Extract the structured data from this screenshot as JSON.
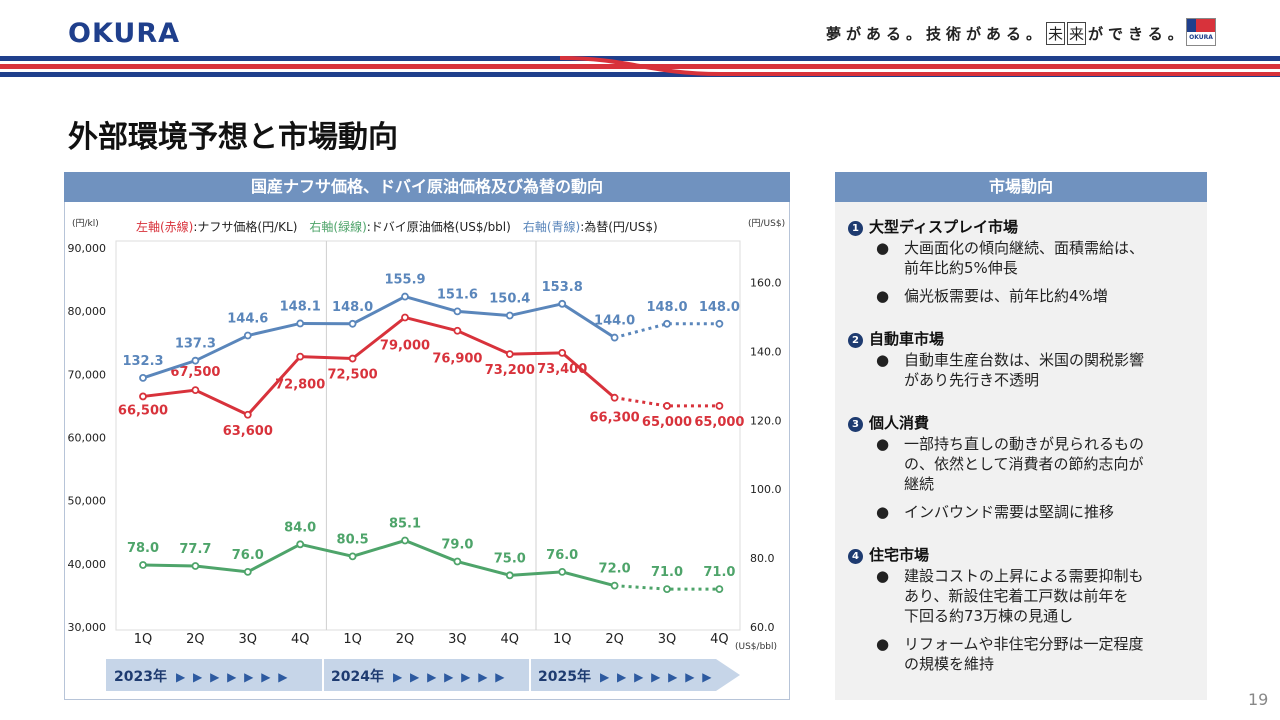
{
  "header": {
    "logo": "OKURA",
    "tagline_a": "夢がある。技術がある。",
    "tagline_box1": "未",
    "tagline_box2": "来",
    "tagline_b": "ができる。",
    "corner_logo": "OKURA"
  },
  "page_title": "外部環境予想と市場動向",
  "left_panel_title": "国産ナフサ価格、ドバイ原油価格及び為替の動向",
  "right_panel_title": "市場動向",
  "page_number": "19",
  "colors": {
    "red": "#d8323b",
    "green": "#4ea46a",
    "blue": "#5a86bb",
    "header_bar": "#7092bf",
    "navy": "#1f3f8c"
  },
  "chart_data": {
    "type": "line",
    "categories": [
      "1Q",
      "2Q",
      "3Q",
      "4Q",
      "1Q",
      "2Q",
      "3Q",
      "4Q",
      "1Q",
      "2Q",
      "3Q",
      "4Q"
    ],
    "years": [
      {
        "label": "2023年",
        "arrows": "▶ ▶ ▶ ▶ ▶ ▶ ▶"
      },
      {
        "label": "2024年",
        "arrows": "▶ ▶ ▶ ▶ ▶ ▶ ▶"
      },
      {
        "label": "2025年",
        "arrows": "▶ ▶ ▶ ▶ ▶ ▶ ▶"
      }
    ],
    "forecast_start_index": 9,
    "left_axis": {
      "unit": "(円/kl)",
      "min": 30000,
      "max": 90000,
      "ticks": [
        "30,000",
        "40,000",
        "50,000",
        "60,000",
        "70,000",
        "80,000",
        "90,000"
      ]
    },
    "right_axis": {
      "unit_top": "(円/US$)",
      "unit_bottom": "(US$/bbl)",
      "min": 60,
      "max": 170,
      "ticks": [
        "60.0",
        "80.0",
        "100.0",
        "120.0",
        "140.0",
        "160.0"
      ]
    },
    "legend": [
      {
        "axis": "左軸(赤線)",
        "text": ":ナフサ価格(円/KL)",
        "color": "#d8323b"
      },
      {
        "axis": "右軸(緑線)",
        "text": ":ドバイ原油価格(US$/bbl)",
        "color": "#4ea46a"
      },
      {
        "axis": "右軸(青線)",
        "text": ":為替(円/US$)",
        "color": "#5a86bb"
      }
    ],
    "series": [
      {
        "name": "ナフサ価格",
        "axis": "left",
        "color": "#d8323b",
        "values": [
          66500,
          67500,
          63600,
          72800,
          72500,
          79000,
          76900,
          73200,
          73400,
          66300,
          65000,
          65000
        ],
        "labels": [
          "66,500",
          "67,500",
          "63,600",
          "72,800",
          "72,500",
          "79,000",
          "76,900",
          "73,200",
          "73,400",
          "66,300",
          "65,000",
          "65,000"
        ]
      },
      {
        "name": "ドバイ原油価格",
        "axis": "right",
        "color": "#4ea46a",
        "values": [
          78.0,
          77.7,
          76.0,
          84.0,
          80.5,
          85.1,
          79.0,
          75.0,
          76.0,
          72.0,
          71.0,
          71.0
        ],
        "labels": [
          "78.0",
          "77.7",
          "76.0",
          "84.0",
          "80.5",
          "85.1",
          "79.0",
          "75.0",
          "76.0",
          "72.0",
          "71.0",
          "71.0"
        ]
      },
      {
        "name": "為替",
        "axis": "right",
        "color": "#5a86bb",
        "values": [
          132.3,
          137.3,
          144.6,
          148.1,
          148.0,
          155.9,
          151.6,
          150.4,
          153.8,
          144.0,
          148.0,
          148.0
        ],
        "labels": [
          "132.3",
          "137.3",
          "144.6",
          "148.1",
          "148.0",
          "155.9",
          "151.6",
          "150.4",
          "153.8",
          "144.0",
          "148.0",
          "148.0"
        ]
      }
    ]
  },
  "market": {
    "sections": [
      {
        "num": "1",
        "title": "大型ディスプレイ市場",
        "bullets": [
          {
            "lines": [
              "大画面化の傾向継続、面積需給は、",
              "前年比約5%伸長"
            ]
          },
          {
            "lines": [
              "偏光板需要は、前年比約4%増"
            ]
          }
        ]
      },
      {
        "num": "2",
        "title": "自動車市場",
        "bullets": [
          {
            "lines": [
              "自動車生産台数は、米国の関税影響",
              "があり先行き不透明"
            ]
          }
        ]
      },
      {
        "num": "3",
        "title": "個人消費",
        "bullets": [
          {
            "lines": [
              "一部持ち直しの動きが見られるもの",
              "の、依然として消費者の節約志向が",
              "継続"
            ]
          },
          {
            "lines": [
              "インバウンド需要は堅調に推移"
            ]
          }
        ]
      },
      {
        "num": "4",
        "title": "住宅市場",
        "bullets": [
          {
            "lines": [
              "建設コストの上昇による需要抑制も",
              "あり、新設住宅着工戸数は前年を",
              "下回る約73万棟の見通し"
            ]
          },
          {
            "lines": [
              "リフォームや非住宅分野は一定程度",
              "の規模を維持"
            ]
          }
        ]
      }
    ],
    "bullet_mark": "●"
  }
}
